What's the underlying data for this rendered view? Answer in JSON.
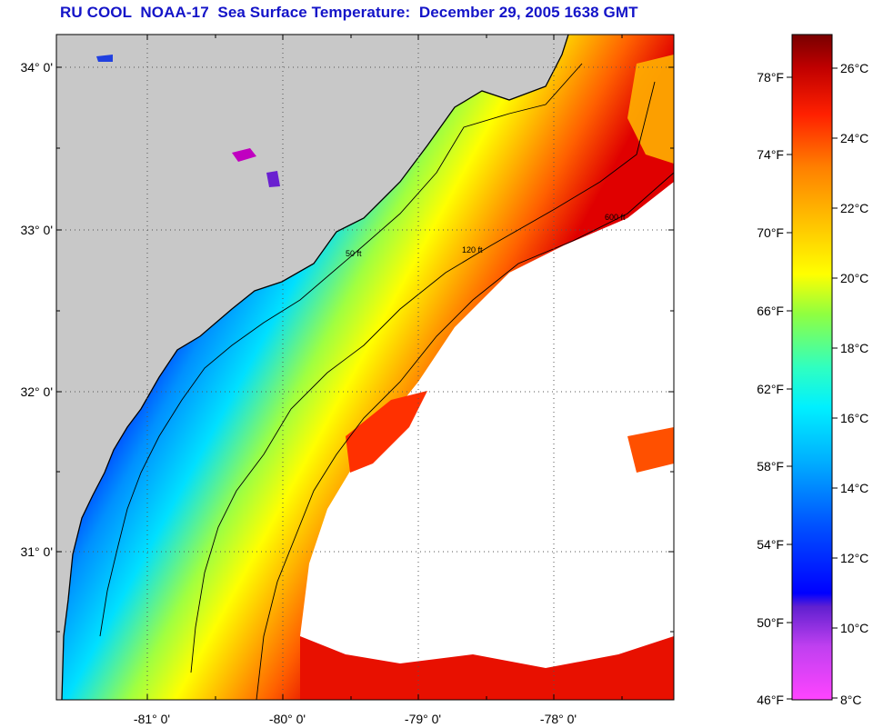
{
  "title": "RU COOL  NOAA-17  Sea Surface Temperature:  December 29, 2005 1638 GMT",
  "map": {
    "lat_labels": [
      "34° 0'",
      "33° 0'",
      "32° 0'",
      "31° 0'"
    ],
    "lon_labels": [
      "-81° 0'",
      "-80° 0'",
      "-79° 0'",
      "-78° 0'"
    ],
    "contour_labels": [
      "50 ft",
      "120 ft",
      "600 ft"
    ]
  },
  "colorbar": {
    "fahrenheit_labels": [
      "78°F",
      "74°F",
      "70°F",
      "66°F",
      "62°F",
      "58°F",
      "54°F",
      "50°F",
      "46°F"
    ],
    "celsius_labels": [
      "26°C",
      "24°C",
      "22°C",
      "20°C",
      "18°C",
      "16°C",
      "14°C",
      "12°C",
      "10°C",
      "8°C"
    ],
    "colors": [
      "#ff44ff",
      "#b040e0",
      "#7020d0",
      "#0000ff",
      "#0050ff",
      "#00a0ff",
      "#00e8ff",
      "#40ffb0",
      "#a0ff40",
      "#ffff00",
      "#ffc000",
      "#ff8000",
      "#ff3000",
      "#e00000",
      "#a00000",
      "#7a0000"
    ]
  }
}
